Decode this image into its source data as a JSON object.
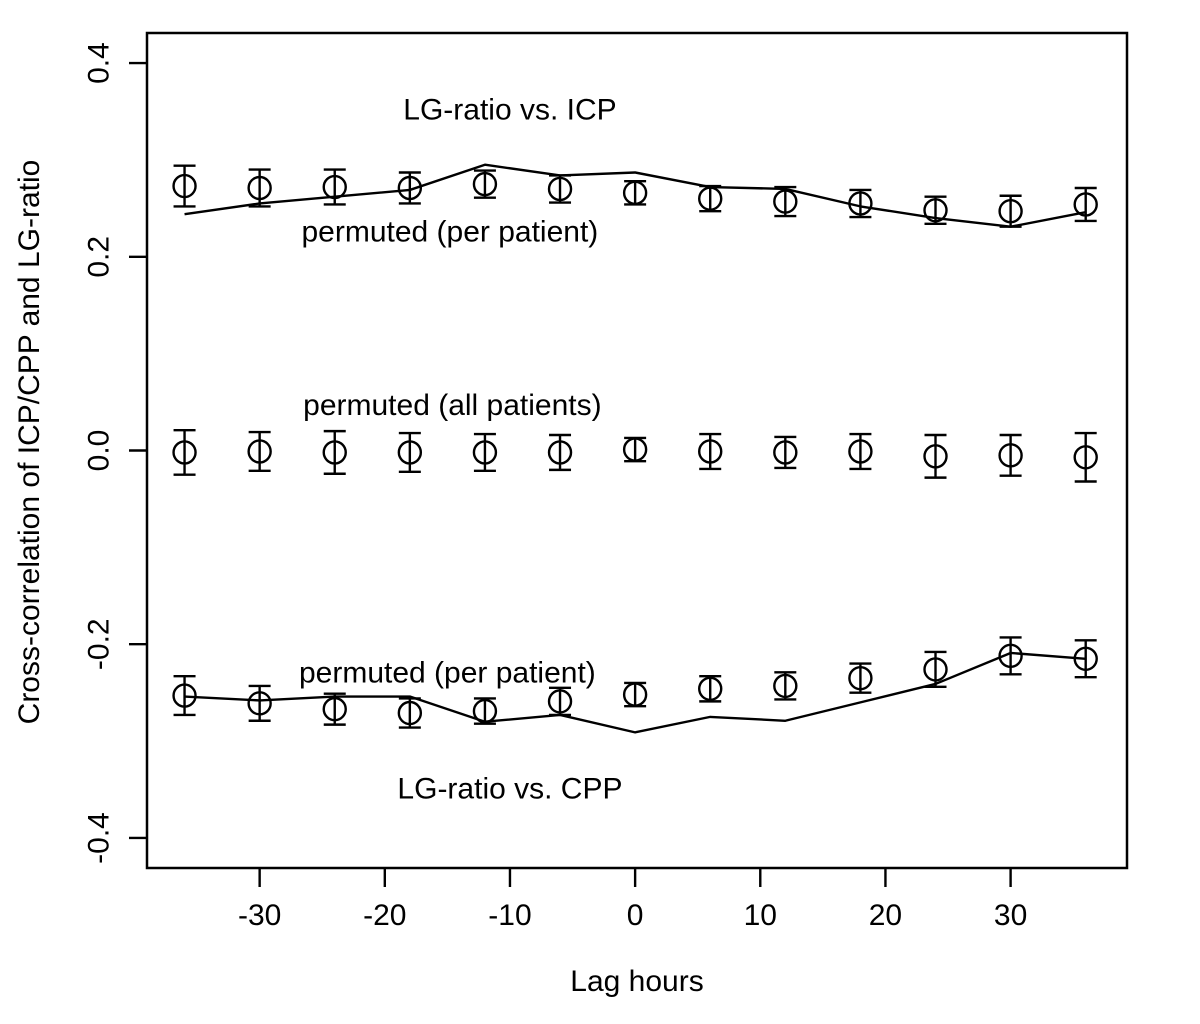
{
  "figure": {
    "background": "#ffffff",
    "ink_color": "#000000"
  },
  "chart_data": {
    "type": "line",
    "title": "",
    "xlabel": "Lag hours",
    "ylabel": "Cross-correlation of ICP/CPP and LG-ratio",
    "xlim": [
      -39.0,
      39.3
    ],
    "ylim": [
      -0.431,
      0.431
    ],
    "xticks": [
      -30,
      -20,
      -10,
      0,
      10,
      20,
      30
    ],
    "yticks": [
      {
        "value": 0.4,
        "label": "0.4"
      },
      {
        "value": 0.2,
        "label": "0.2"
      },
      {
        "value": 0.0,
        "label": "0.0"
      },
      {
        "value": -0.2,
        "label": "-0.2"
      },
      {
        "value": -0.4,
        "label": "-0.4"
      }
    ],
    "grid": false,
    "legend_position": "none",
    "x": [
      -36,
      -30,
      -24,
      -18,
      -12,
      -6,
      0,
      6,
      12,
      18,
      24,
      30,
      36
    ],
    "series": [
      {
        "name": "LG-ratio vs. ICP",
        "style": "points-errorbars",
        "marker": "open-circle",
        "values": [
          0.273,
          0.271,
          0.272,
          0.271,
          0.275,
          0.27,
          0.266,
          0.26,
          0.257,
          0.255,
          0.248,
          0.247,
          0.254
        ],
        "errors": [
          0.021,
          0.019,
          0.018,
          0.016,
          0.014,
          0.014,
          0.012,
          0.013,
          0.015,
          0.014,
          0.014,
          0.016,
          0.017
        ]
      },
      {
        "name": "permuted (per patient)",
        "style": "line",
        "values": [
          0.244,
          0.255,
          0.262,
          0.269,
          0.295,
          0.284,
          0.287,
          0.272,
          0.27,
          0.252,
          0.24,
          0.231,
          0.246
        ]
      },
      {
        "name": "permuted (all patients)",
        "style": "points-errorbars",
        "marker": "open-circle",
        "values": [
          -0.002,
          -0.001,
          -0.002,
          -0.002,
          -0.002,
          -0.002,
          0.001,
          -0.001,
          -0.002,
          -0.001,
          -0.006,
          -0.005,
          -0.007
        ],
        "errors": [
          0.023,
          0.02,
          0.022,
          0.02,
          0.019,
          0.018,
          0.012,
          0.018,
          0.016,
          0.018,
          0.022,
          0.021,
          0.025
        ]
      },
      {
        "name": "LG-ratio vs. CPP",
        "style": "points-errorbars",
        "marker": "open-circle",
        "values": [
          -0.253,
          -0.261,
          -0.267,
          -0.271,
          -0.269,
          -0.259,
          -0.252,
          -0.246,
          -0.243,
          -0.235,
          -0.226,
          -0.212,
          -0.215
        ],
        "errors": [
          0.02,
          0.018,
          0.016,
          0.015,
          0.013,
          0.014,
          0.012,
          0.013,
          0.014,
          0.015,
          0.018,
          0.019,
          0.019
        ]
      },
      {
        "name": "permuted (per patient)",
        "style": "line",
        "values": [
          -0.254,
          -0.258,
          -0.254,
          -0.254,
          -0.28,
          -0.273,
          -0.291,
          -0.275,
          -0.279,
          -0.26,
          -0.241,
          -0.209,
          -0.215
        ]
      }
    ],
    "annotations": [
      {
        "text": "LG-ratio vs. ICP",
        "x": -10.0,
        "y": 0.352
      },
      {
        "text": "permuted (per patient)",
        "x": -14.8,
        "y": 0.226
      },
      {
        "text": "permuted (all patients)",
        "x": -14.6,
        "y": 0.047
      },
      {
        "text": "permuted (per patient)",
        "x": -15.0,
        "y": -0.229
      },
      {
        "text": "LG-ratio vs. CPP",
        "x": -10.0,
        "y": -0.349
      }
    ]
  }
}
